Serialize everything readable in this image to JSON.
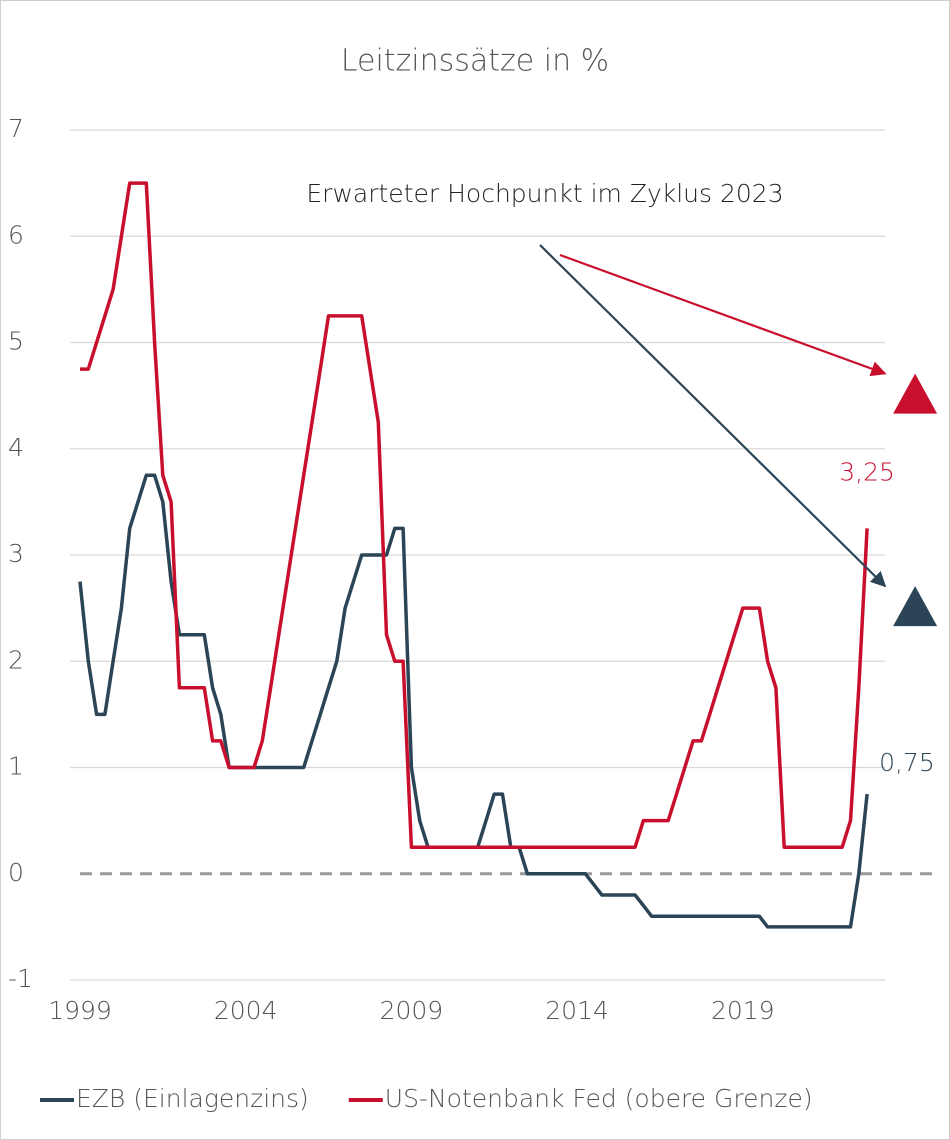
{
  "chart_data": {
    "type": "line",
    "title": "Leitzinssätze in %",
    "annotation": "Erwarteter Hochpunkt im Zyklus 2023",
    "x": [
      1999,
      1999.25,
      1999.5,
      1999.75,
      2000,
      2000.25,
      2000.5,
      2000.75,
      2001,
      2001.25,
      2001.5,
      2001.75,
      2002,
      2002.25,
      2002.5,
      2002.75,
      2003,
      2003.25,
      2003.5,
      2003.75,
      2004,
      2004.25,
      2004.5,
      2004.75,
      2005,
      2005.25,
      2005.5,
      2005.75,
      2006,
      2006.25,
      2006.5,
      2006.75,
      2007,
      2007.25,
      2007.5,
      2007.75,
      2008,
      2008.25,
      2008.5,
      2008.75,
      2009,
      2009.25,
      2009.5,
      2009.75,
      2010,
      2010.25,
      2010.5,
      2010.75,
      2011,
      2011.25,
      2011.5,
      2011.75,
      2012,
      2012.25,
      2012.5,
      2012.75,
      2013,
      2013.25,
      2013.5,
      2013.75,
      2014,
      2014.25,
      2014.5,
      2014.75,
      2015,
      2015.25,
      2015.5,
      2015.75,
      2016,
      2016.25,
      2016.5,
      2016.75,
      2017,
      2017.25,
      2017.5,
      2017.75,
      2018,
      2018.25,
      2018.5,
      2018.75,
      2019,
      2019.25,
      2019.5,
      2019.75,
      2020,
      2020.25,
      2020.5,
      2020.75,
      2021,
      2021.25,
      2021.5,
      2021.75,
      2022,
      2022.25,
      2022.5,
      2022.75
    ],
    "series": [
      {
        "name": "EZB (Einlagenzins)",
        "color": "#2b4557",
        "end_label": "0,75",
        "values": [
          2.75,
          2.0,
          1.5,
          1.5,
          2.0,
          2.5,
          3.25,
          3.5,
          3.75,
          3.75,
          3.5,
          2.75,
          2.25,
          2.25,
          2.25,
          2.25,
          1.75,
          1.5,
          1.0,
          1.0,
          1.0,
          1.0,
          1.0,
          1.0,
          1.0,
          1.0,
          1.0,
          1.0,
          1.25,
          1.5,
          1.75,
          2.0,
          2.5,
          2.75,
          3.0,
          3.0,
          3.0,
          3.0,
          3.25,
          3.25,
          1.0,
          0.5,
          0.25,
          0.25,
          0.25,
          0.25,
          0.25,
          0.25,
          0.25,
          0.5,
          0.75,
          0.75,
          0.25,
          0.25,
          0.0,
          0.0,
          0.0,
          0.0,
          0.0,
          0.0,
          0.0,
          0.0,
          -0.1,
          -0.2,
          -0.2,
          -0.2,
          -0.2,
          -0.2,
          -0.3,
          -0.4,
          -0.4,
          -0.4,
          -0.4,
          -0.4,
          -0.4,
          -0.4,
          -0.4,
          -0.4,
          -0.4,
          -0.4,
          -0.4,
          -0.4,
          -0.4,
          -0.5,
          -0.5,
          -0.5,
          -0.5,
          -0.5,
          -0.5,
          -0.5,
          -0.5,
          -0.5,
          -0.5,
          -0.5,
          0.0,
          0.75
        ]
      },
      {
        "name": "US-Notenbank Fed (obere Grenze)",
        "color": "#c8102e",
        "end_label": "3,25",
        "values": [
          4.75,
          4.75,
          5.0,
          5.25,
          5.5,
          6.0,
          6.5,
          6.5,
          6.5,
          5.0,
          3.75,
          3.5,
          1.75,
          1.75,
          1.75,
          1.75,
          1.25,
          1.25,
          1.0,
          1.0,
          1.0,
          1.0,
          1.25,
          1.75,
          2.25,
          2.75,
          3.25,
          3.75,
          4.25,
          4.75,
          5.25,
          5.25,
          5.25,
          5.25,
          5.25,
          4.75,
          4.25,
          2.25,
          2.0,
          2.0,
          0.25,
          0.25,
          0.25,
          0.25,
          0.25,
          0.25,
          0.25,
          0.25,
          0.25,
          0.25,
          0.25,
          0.25,
          0.25,
          0.25,
          0.25,
          0.25,
          0.25,
          0.25,
          0.25,
          0.25,
          0.25,
          0.25,
          0.25,
          0.25,
          0.25,
          0.25,
          0.25,
          0.25,
          0.5,
          0.5,
          0.5,
          0.5,
          0.75,
          1.0,
          1.25,
          1.25,
          1.5,
          1.75,
          2.0,
          2.25,
          2.5,
          2.5,
          2.5,
          2.0,
          1.75,
          0.25,
          0.25,
          0.25,
          0.25,
          0.25,
          0.25,
          0.25,
          0.25,
          0.5,
          1.75,
          3.25
        ]
      }
    ],
    "markers": [
      {
        "x": 2024.2,
        "value": 4.5,
        "color": "#c8102e"
      },
      {
        "x": 2024.2,
        "value": 2.5,
        "color": "#2b4557"
      }
    ],
    "xlim": [
      1999,
      2024.8
    ],
    "xticks": [
      1999,
      2004,
      2009,
      2014,
      2019
    ],
    "ylim": [
      -1,
      7
    ],
    "yticks": [
      -1,
      0,
      1,
      2,
      3,
      4,
      5,
      6,
      7
    ],
    "grid": true,
    "legend": "bottom"
  }
}
